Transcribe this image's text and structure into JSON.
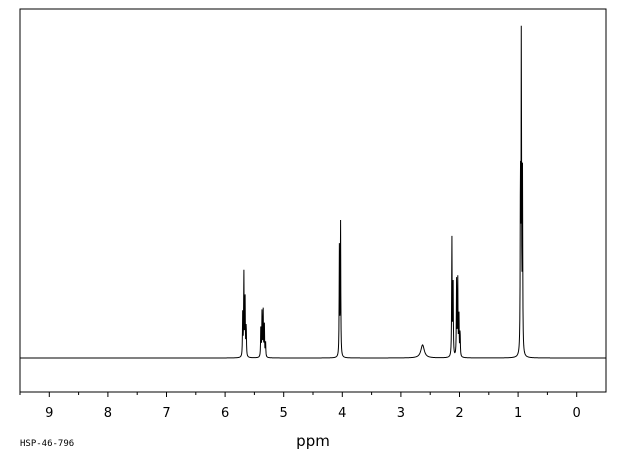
{
  "chart_data": {
    "type": "line",
    "title": "",
    "xlabel": "ppm",
    "ylabel": "",
    "xlim": [
      9.5,
      -0.5
    ],
    "ylim": [
      -0.1,
      1.0
    ],
    "x_inverted": true,
    "grid": false,
    "tick_labels": [
      "9",
      "8",
      "7",
      "6",
      "5",
      "4",
      "3",
      "2",
      "1",
      "0"
    ],
    "tick_values": [
      9,
      8,
      7,
      6,
      5,
      4,
      3,
      2,
      1,
      0
    ],
    "peaks": [
      {
        "ppm": 5.7,
        "height": 0.13
      },
      {
        "ppm": 5.68,
        "height": 0.26
      },
      {
        "ppm": 5.66,
        "height": 0.2
      },
      {
        "ppm": 5.64,
        "height": 0.1
      },
      {
        "ppm": 5.39,
        "height": 0.1
      },
      {
        "ppm": 5.37,
        "height": 0.14
      },
      {
        "ppm": 5.35,
        "height": 0.14
      },
      {
        "ppm": 5.33,
        "height": 0.1
      },
      {
        "ppm": 5.31,
        "height": 0.05
      },
      {
        "ppm": 4.05,
        "height": 0.33
      },
      {
        "ppm": 4.03,
        "height": 0.42
      },
      {
        "ppm": 2.63,
        "height": 0.04
      },
      {
        "ppm": 2.13,
        "height": 0.37
      },
      {
        "ppm": 2.11,
        "height": 0.25
      },
      {
        "ppm": 2.05,
        "height": 0.23
      },
      {
        "ppm": 2.03,
        "height": 0.24
      },
      {
        "ppm": 2.01,
        "height": 0.14
      },
      {
        "ppm": 1.99,
        "height": 0.08
      },
      {
        "ppm": 0.96,
        "height": 0.56
      },
      {
        "ppm": 0.945,
        "height": 0.97
      },
      {
        "ppm": 0.925,
        "height": 0.54
      }
    ],
    "footnote": "HSP-46-796"
  }
}
